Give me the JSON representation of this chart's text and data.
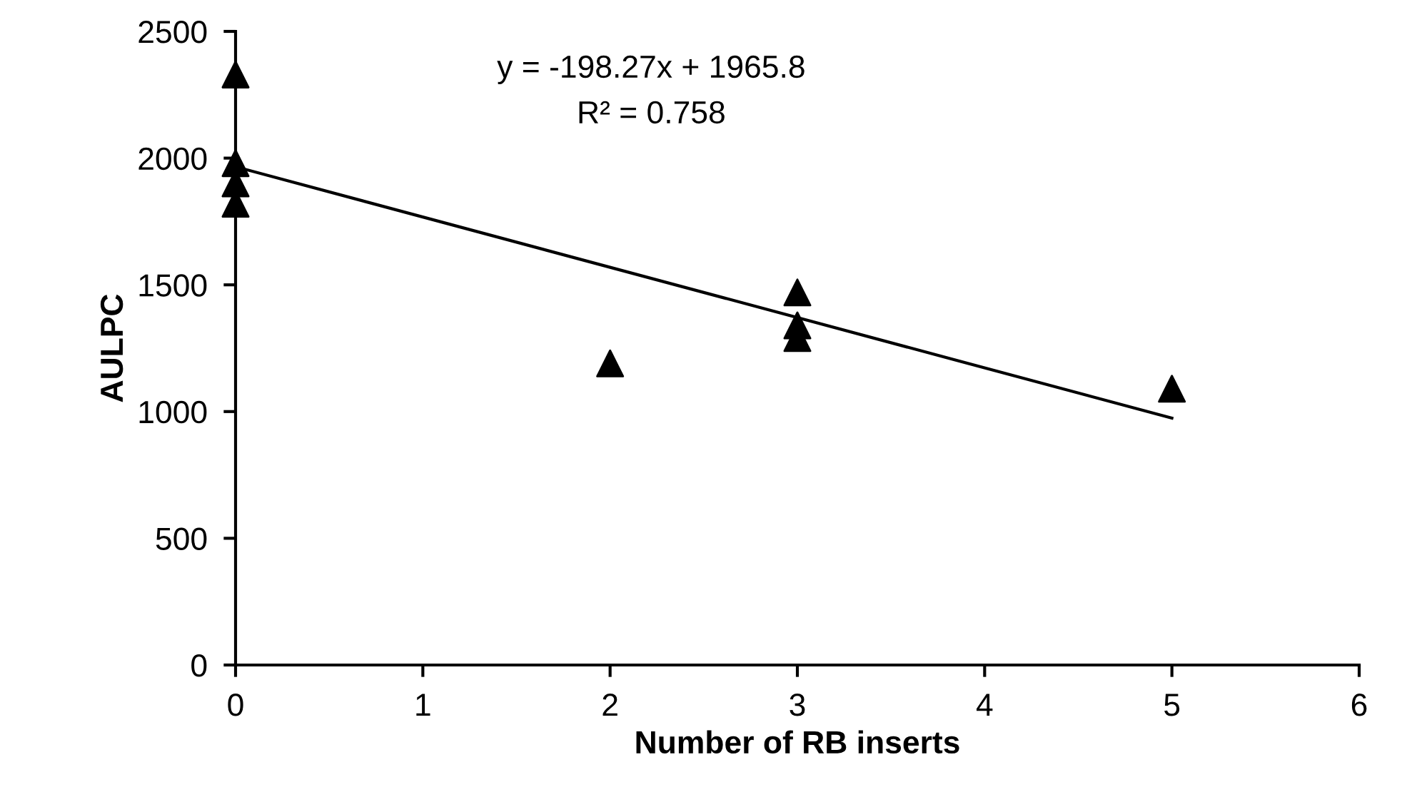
{
  "chart_data": {
    "type": "scatter",
    "xlabel": "Number of RB inserts",
    "ylabel": "AULPC",
    "annotations": [
      "y = -198.27x + 1965.8",
      "R² = 0.758"
    ],
    "series": [
      {
        "color": "#000000",
        "marker": "triangle",
        "x": [
          0,
          0,
          0,
          0,
          2,
          3,
          3,
          3,
          5
        ],
        "values": [
          2330,
          1980,
          1900,
          1820,
          1190,
          1470,
          1340,
          1290,
          1090
        ]
      },
      {
        "type": "line",
        "color": "#000000",
        "marker": "none",
        "line_style": "solid",
        "x": [
          0,
          5
        ],
        "values": [
          1966,
          974
        ]
      }
    ],
    "xlim": [
      0,
      6
    ],
    "xticks": [
      0,
      1,
      2,
      3,
      4,
      5,
      6
    ],
    "ylim": [
      0,
      2500
    ],
    "yticks": [
      0,
      500,
      1000,
      1500,
      2000,
      2500
    ],
    "grid": false,
    "legend": false
  }
}
